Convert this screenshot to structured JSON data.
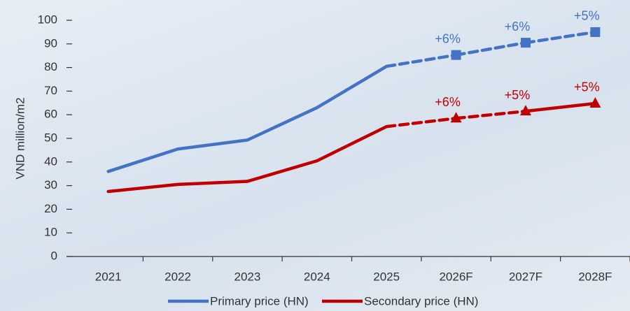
{
  "chart_data": {
    "type": "line",
    "y_label": "VND million/m2",
    "categories": [
      "2021",
      "2022",
      "2023",
      "2024",
      "2025",
      "2026F",
      "2027F",
      "2028F"
    ],
    "series": [
      {
        "name": "Primary price (HN)",
        "color": "#4472c4",
        "marker": "square",
        "values": [
          36,
          45.5,
          49.3,
          63,
          80.5,
          85.3,
          90.5,
          95
        ],
        "dashed_segments": [
          false,
          false,
          false,
          false,
          true,
          true,
          true
        ],
        "annotations": [
          null,
          null,
          null,
          null,
          null,
          "+6%",
          "+6%",
          "+5%"
        ]
      },
      {
        "name": "Secondary price (HN)",
        "color": "#c00000",
        "marker": "triangle",
        "values": [
          27.5,
          30.5,
          31.8,
          40.5,
          55,
          58.5,
          61.5,
          64.8
        ],
        "dashed_segments": [
          false,
          false,
          false,
          false,
          true,
          true,
          false
        ],
        "annotations": [
          null,
          null,
          null,
          null,
          null,
          "+6%",
          "+5%",
          "+5%"
        ]
      }
    ],
    "ylim": [
      0,
      100
    ],
    "yticks": [
      0,
      10,
      20,
      30,
      40,
      50,
      60,
      70,
      80,
      90,
      100
    ]
  }
}
